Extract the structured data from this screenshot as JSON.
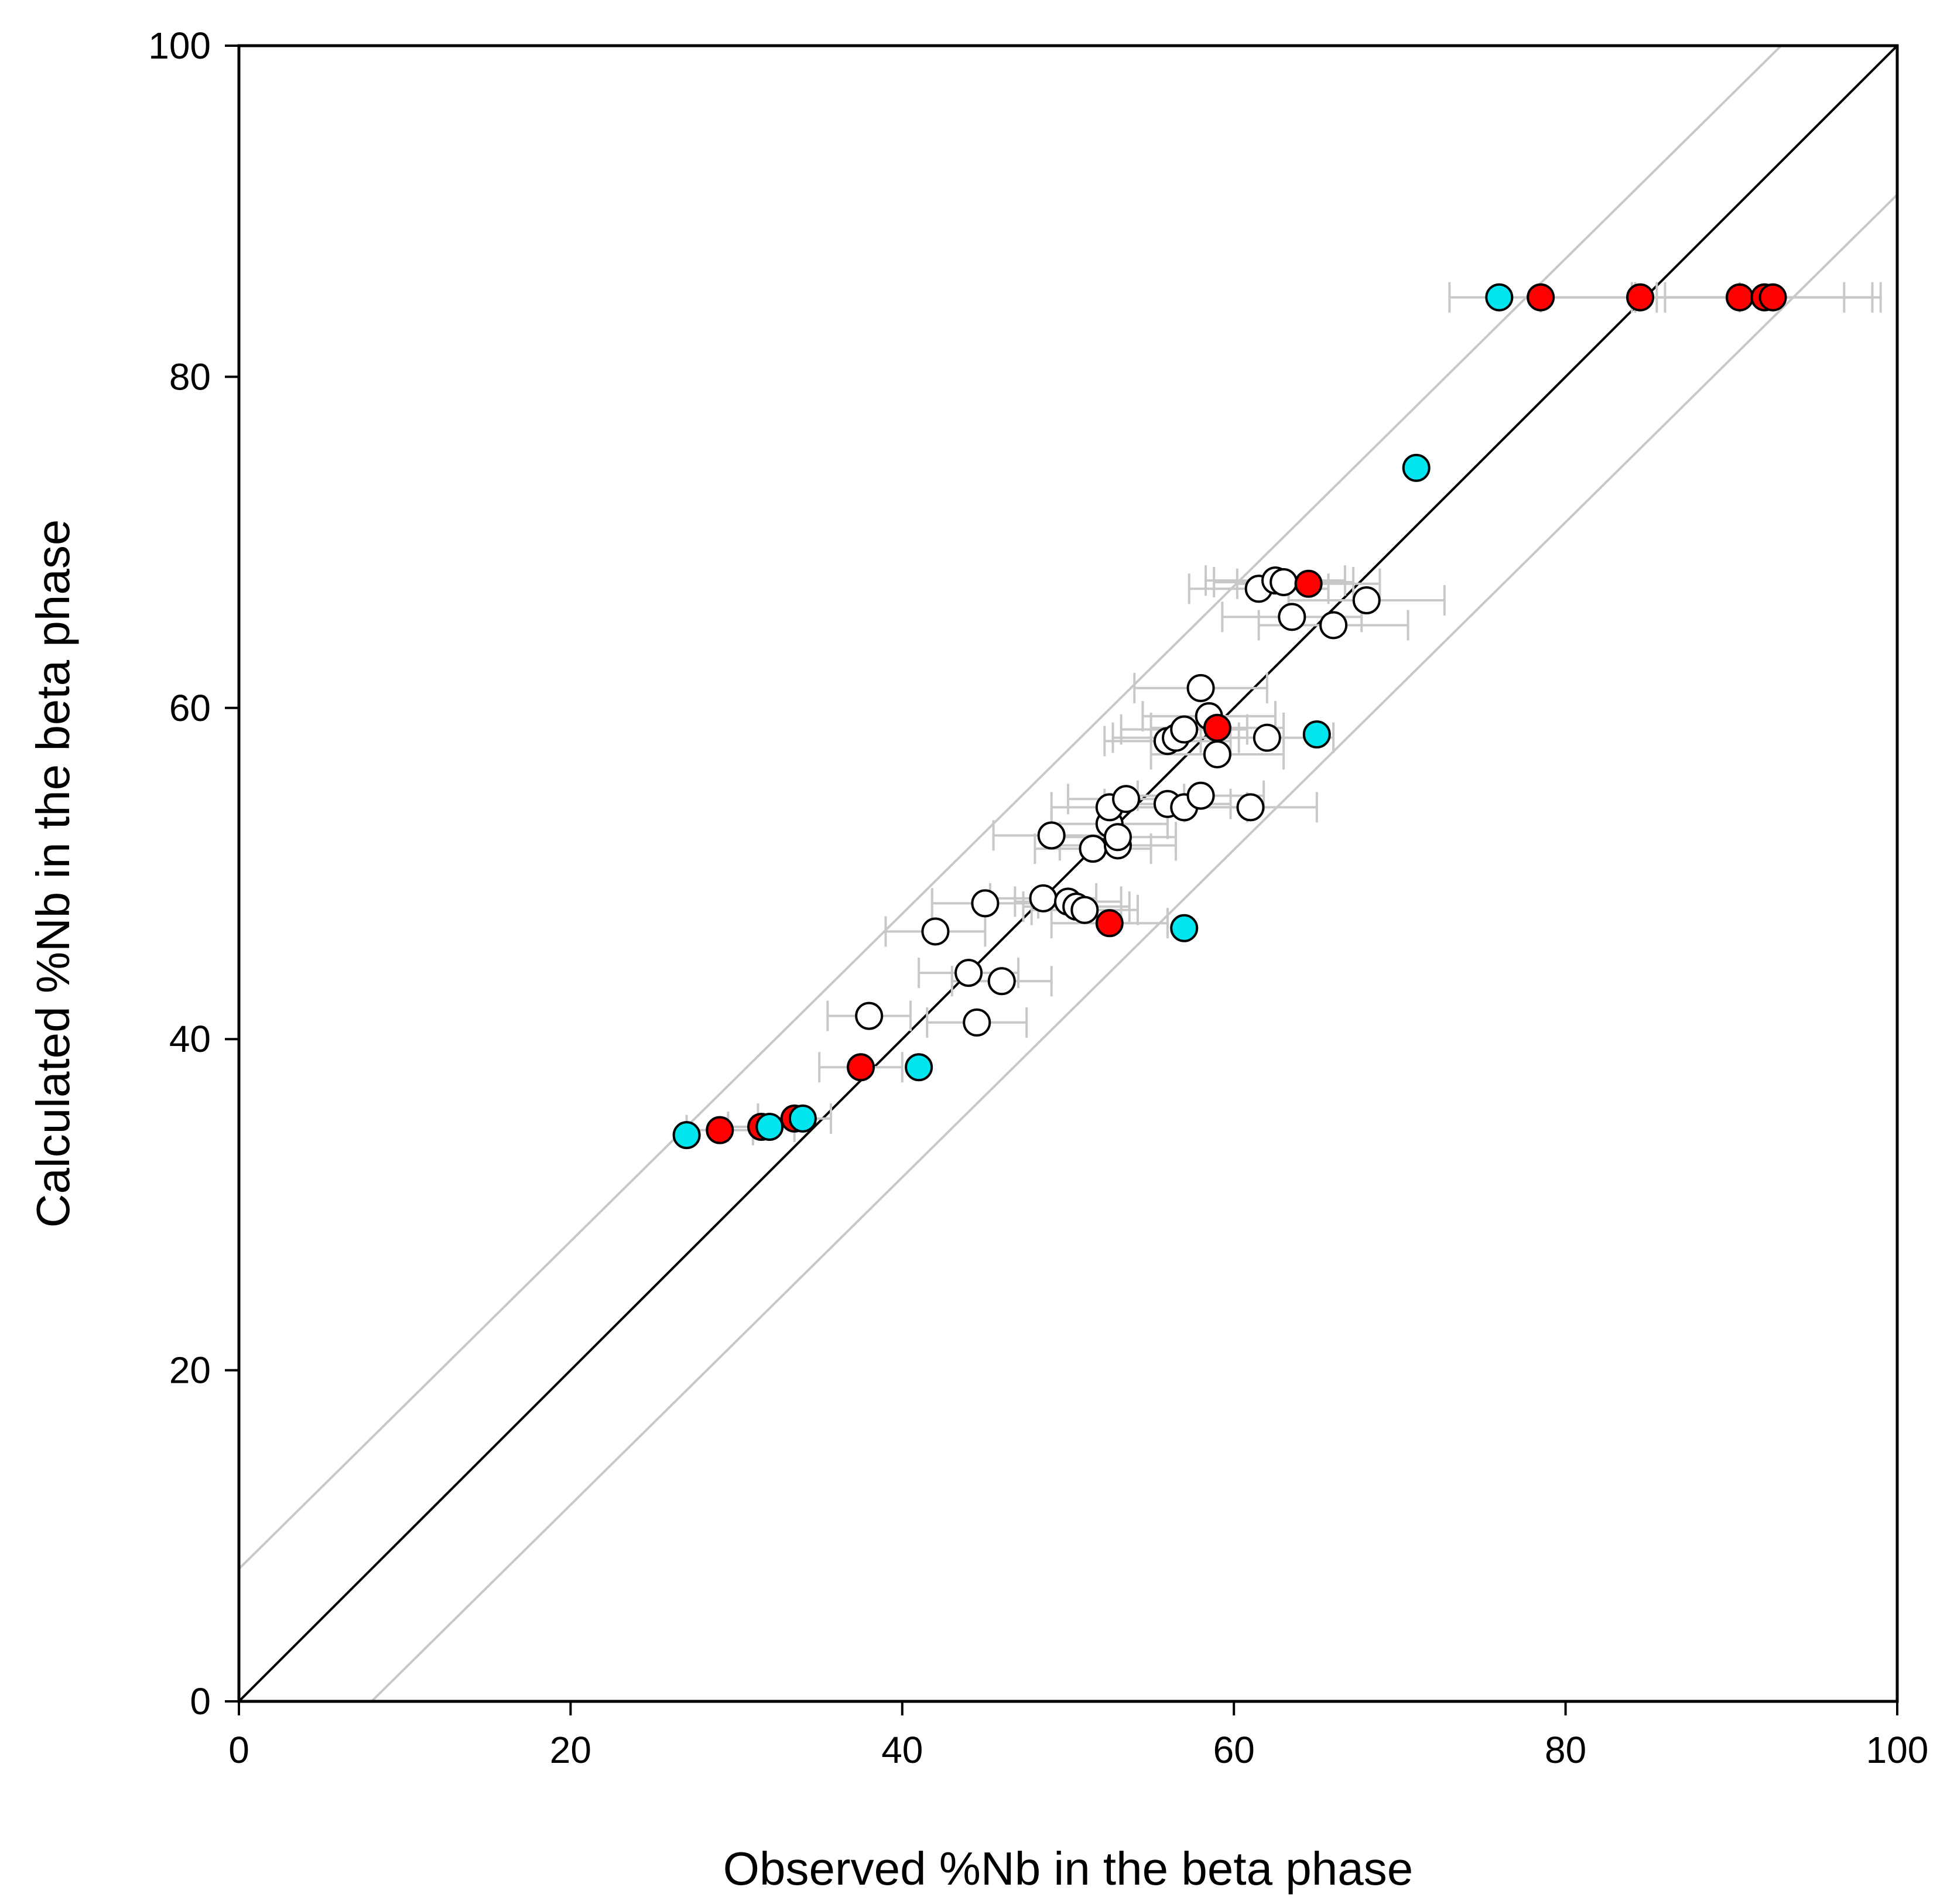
{
  "chart_data": {
    "type": "scatter",
    "xlabel": "Observed %Nb in the beta phase",
    "ylabel": "Calculated %Nb in the beta phase",
    "xlim": [
      0,
      100
    ],
    "ylim": [
      0,
      100
    ],
    "x_ticks": [
      "0",
      "20",
      "40",
      "60",
      "80",
      "100"
    ],
    "y_ticks": [
      "0",
      "20",
      "40",
      "60",
      "80",
      "100"
    ],
    "grid": false,
    "legend": "none",
    "reference_lines": [
      {
        "x": [
          0,
          100
        ],
        "y": [
          0,
          100
        ],
        "color": "#000000"
      },
      {
        "x": [
          0,
          93
        ],
        "y": [
          8,
          100
        ],
        "color": "#c8c8c8"
      },
      {
        "x": [
          8,
          100
        ],
        "y": [
          0,
          91
        ],
        "color": "#c8c8c8"
      }
    ],
    "error_bar_color": "#c8c8c8",
    "series": [
      {
        "marker_color": "#ffffff",
        "points": [
          {
            "x": 38.0,
            "y": 41.4,
            "err": 2.5
          },
          {
            "x": 42.0,
            "y": 46.5,
            "err": 3.0
          },
          {
            "x": 44.0,
            "y": 44.0,
            "err": 3.0
          },
          {
            "x": 44.5,
            "y": 41.0,
            "err": 3.0
          },
          {
            "x": 45.0,
            "y": 48.2,
            "err": 3.2
          },
          {
            "x": 46.0,
            "y": 43.5,
            "err": 3.0
          },
          {
            "x": 48.5,
            "y": 48.5,
            "err": 3.2
          },
          {
            "x": 49.0,
            "y": 52.3,
            "err": 3.5
          },
          {
            "x": 50.0,
            "y": 48.3,
            "err": 3.2
          },
          {
            "x": 50.5,
            "y": 48.0,
            "err": 3.2
          },
          {
            "x": 51.0,
            "y": 47.8,
            "err": 3.2
          },
          {
            "x": 51.5,
            "y": 51.5,
            "err": 3.5
          },
          {
            "x": 52.5,
            "y": 53.0,
            "err": 3.5
          },
          {
            "x": 52.5,
            "y": 54.0,
            "err": 3.5
          },
          {
            "x": 53.0,
            "y": 51.7,
            "err": 3.5
          },
          {
            "x": 53.0,
            "y": 52.2,
            "err": 3.5
          },
          {
            "x": 53.5,
            "y": 54.5,
            "err": 3.5
          },
          {
            "x": 56.0,
            "y": 54.2,
            "err": 3.8
          },
          {
            "x": 56.0,
            "y": 58.0,
            "err": 3.8
          },
          {
            "x": 56.5,
            "y": 58.2,
            "err": 3.8
          },
          {
            "x": 57.0,
            "y": 58.7,
            "err": 3.8
          },
          {
            "x": 57.0,
            "y": 54.0,
            "err": 3.8
          },
          {
            "x": 58.0,
            "y": 54.7,
            "err": 3.8
          },
          {
            "x": 58.0,
            "y": 61.2,
            "err": 4.0
          },
          {
            "x": 58.5,
            "y": 59.5,
            "err": 4.0
          },
          {
            "x": 59.0,
            "y": 57.2,
            "err": 4.0
          },
          {
            "x": 61.0,
            "y": 54.0,
            "err": 4.0
          },
          {
            "x": 62.0,
            "y": 58.2,
            "err": 4.0
          },
          {
            "x": 61.5,
            "y": 67.2,
            "err": 4.2
          },
          {
            "x": 62.5,
            "y": 67.7,
            "err": 4.2
          },
          {
            "x": 63.0,
            "y": 67.6,
            "err": 4.2
          },
          {
            "x": 63.5,
            "y": 65.5,
            "err": 4.2
          },
          {
            "x": 66.0,
            "y": 65.0,
            "err": 4.5
          },
          {
            "x": 68.0,
            "y": 66.5,
            "err": 4.7
          }
        ]
      },
      {
        "marker_color": "#ff0000",
        "points": [
          {
            "x": 29.0,
            "y": 34.5,
            "err": 2.0
          },
          {
            "x": 31.5,
            "y": 34.7,
            "err": 2.0
          },
          {
            "x": 33.5,
            "y": 35.2,
            "err": 2.2
          },
          {
            "x": 37.5,
            "y": 38.3,
            "err": 2.5
          },
          {
            "x": 52.5,
            "y": 47.0,
            "err": 3.5
          },
          {
            "x": 59.0,
            "y": 58.8,
            "err": 4.0
          },
          {
            "x": 64.5,
            "y": 67.5,
            "err": 4.3
          },
          {
            "x": 78.5,
            "y": 84.8,
            "err": 5.5
          },
          {
            "x": 84.5,
            "y": 84.8,
            "err": 6.0
          },
          {
            "x": 90.5,
            "y": 84.8,
            "err": 6.3
          },
          {
            "x": 92.0,
            "y": 84.8,
            "err": 6.5
          },
          {
            "x": 92.5,
            "y": 84.8,
            "err": 6.5
          }
        ]
      },
      {
        "marker_color": "#00e5ee",
        "points": [
          {
            "x": 27.0,
            "y": 34.2,
            "err": 0
          },
          {
            "x": 32.0,
            "y": 34.7,
            "err": 0
          },
          {
            "x": 34.0,
            "y": 35.2,
            "err": 0
          },
          {
            "x": 41.0,
            "y": 38.3,
            "err": 0
          },
          {
            "x": 57.0,
            "y": 46.7,
            "err": 0
          },
          {
            "x": 65.0,
            "y": 58.4,
            "err": 0
          },
          {
            "x": 71.0,
            "y": 74.5,
            "err": 0
          },
          {
            "x": 76.0,
            "y": 84.8,
            "err": 0
          }
        ]
      }
    ]
  }
}
